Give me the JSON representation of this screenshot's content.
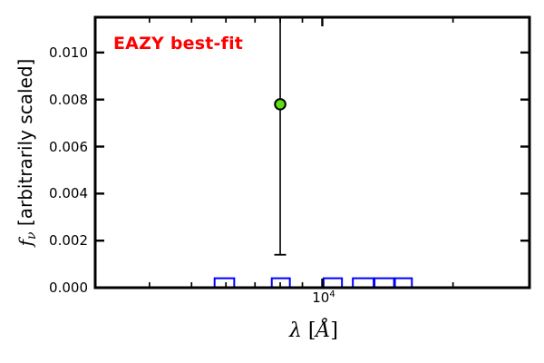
{
  "figure": {
    "background": "#ffffff"
  },
  "annotation": {
    "text": "EAZY best-fit",
    "color": "#ff0000"
  },
  "labels": {
    "ylabel_f": "f",
    "ylabel_nu": "ν",
    "ylabel_rest": " [arbitrarily scaled]",
    "xlabel_lambda": "λ",
    "xlabel_open": " [",
    "xlabel_angstrom": "Å",
    "xlabel_close": "]"
  },
  "chart_data": {
    "type": "scatter",
    "title": "",
    "xlabel": "λ [Å]",
    "ylabel": "f_ν [arbitrarily scaled]",
    "grid": false,
    "legend": "none",
    "axis_color": "#000000",
    "x_axis": {
      "scale": "log",
      "lim": [
        3000,
        30000
      ],
      "major_ticks": [
        10000
      ],
      "major_tick_label_base": "10",
      "major_tick_label_exponent": "4",
      "minor_ticks": [
        4000,
        5000,
        6000,
        7000,
        8000,
        9000,
        20000
      ]
    },
    "y_axis": {
      "scale": "linear",
      "lim": [
        0,
        0.0115
      ],
      "ticks": [
        0,
        0.002,
        0.004,
        0.006,
        0.008,
        0.01
      ],
      "tick_labels": [
        "0.000",
        "0.002",
        "0.004",
        "0.006",
        "0.008",
        "0.010"
      ]
    },
    "series": [
      {
        "name": "observed-photometry-point",
        "type": "scatter-errorbar",
        "marker": "circle",
        "marker_fill": "#5ce114",
        "marker_edge": "#000000",
        "errorbar_color": "#000000",
        "points": [
          {
            "x": 8000,
            "y": 0.0078,
            "err_low_end": 0.0014,
            "err_high_clipped_at_top": true
          }
        ]
      },
      {
        "name": "filter-passbands",
        "type": "tophat-outline",
        "line_color": "#0000ff",
        "top_value": 0.0004,
        "bands": [
          [
            5650,
            6270
          ],
          [
            7650,
            8420
          ],
          [
            10070,
            11100
          ],
          [
            11760,
            13130
          ],
          [
            13190,
            14630
          ],
          [
            14700,
            16080
          ]
        ]
      }
    ]
  }
}
